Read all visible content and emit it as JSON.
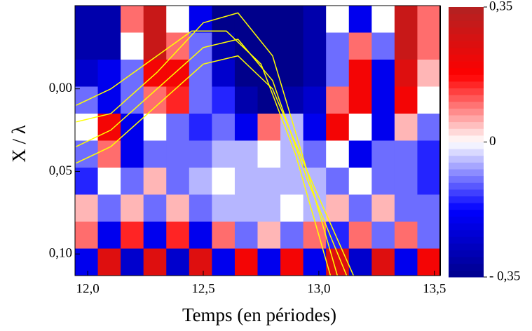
{
  "chart_data": {
    "type": "heatmap",
    "xlabel": "Temps (en périodes)",
    "ylabel": "X / λ",
    "xlim": [
      11.945,
      13.525
    ],
    "ylim": [
      -0.0504,
      0.1131
    ],
    "y_inverted": true,
    "xticks": [
      {
        "value": 12.0,
        "label": "12,0"
      },
      {
        "value": 12.5,
        "label": "12,5"
      },
      {
        "value": 13.0,
        "label": "13,0"
      },
      {
        "value": 13.5,
        "label": "13,5"
      }
    ],
    "yticks": [
      {
        "value": 0.0,
        "label": "0,00"
      },
      {
        "value": 0.05,
        "label": "0,05"
      },
      {
        "value": 0.1,
        "label": "0,10"
      }
    ],
    "clim": [
      -0.35,
      0.35
    ],
    "cticks": [
      {
        "value": 0.35,
        "label": "0,35"
      },
      {
        "value": 0,
        "label": "0"
      },
      {
        "value": -0.35,
        "label": "- 0,35"
      }
    ],
    "colorscale": [
      "#00008b",
      "#0000ff",
      "#ffffff",
      "#ff0000",
      "#b22222"
    ],
    "z": [
      [
        -0.3,
        -0.3,
        0.1,
        0.3,
        0.0,
        -0.2,
        -0.35,
        -0.35,
        -0.35,
        -0.35,
        -0.3,
        0.0,
        -0.2,
        0.0,
        0.3,
        0.1
      ],
      [
        -0.3,
        -0.3,
        0.0,
        0.3,
        0.1,
        -0.1,
        -0.3,
        -0.35,
        -0.35,
        -0.35,
        -0.3,
        -0.1,
        0.1,
        -0.1,
        0.3,
        0.1
      ],
      [
        -0.25,
        -0.2,
        -0.1,
        0.2,
        0.2,
        -0.1,
        -0.25,
        -0.35,
        -0.35,
        -0.35,
        -0.3,
        -0.1,
        0.2,
        -0.2,
        0.25,
        0.05
      ],
      [
        -0.1,
        -0.2,
        -0.1,
        0.1,
        0.15,
        -0.1,
        -0.15,
        -0.3,
        -0.35,
        -0.3,
        -0.25,
        0.1,
        0.2,
        -0.2,
        0.2,
        0.0
      ],
      [
        0.0,
        0.2,
        -0.2,
        0.0,
        -0.1,
        -0.15,
        -0.1,
        -0.2,
        0.1,
        -0.05,
        -0.2,
        0.2,
        0.0,
        -0.2,
        0.05,
        -0.1
      ],
      [
        -0.1,
        0.1,
        -0.2,
        -0.1,
        -0.1,
        -0.1,
        -0.05,
        -0.05,
        0.0,
        -0.05,
        -0.1,
        0.0,
        -0.2,
        -0.1,
        -0.1,
        -0.15
      ],
      [
        -0.15,
        0.0,
        -0.1,
        0.05,
        -0.1,
        -0.05,
        0.0,
        -0.05,
        -0.05,
        -0.05,
        -0.05,
        -0.1,
        0.0,
        -0.1,
        -0.1,
        -0.15
      ],
      [
        0.05,
        -0.1,
        0.05,
        -0.1,
        0.05,
        -0.1,
        -0.05,
        -0.05,
        -0.05,
        0.0,
        -0.05,
        0.05,
        -0.1,
        0.05,
        -0.1,
        -0.1
      ],
      [
        0.1,
        -0.2,
        0.15,
        -0.2,
        0.15,
        -0.2,
        0.1,
        -0.1,
        0.05,
        -0.1,
        0.1,
        -0.15,
        0.1,
        -0.1,
        0.1,
        -0.1
      ],
      [
        -0.2,
        0.25,
        -0.25,
        0.25,
        -0.25,
        0.25,
        -0.2,
        0.2,
        -0.2,
        0.2,
        -0.2,
        0.25,
        -0.25,
        0.25,
        -0.2,
        0.2
      ]
    ],
    "line_color": "#ffff00",
    "trajectories": [
      {
        "x": [
          11.95,
          12.1,
          12.3,
          12.5,
          12.65,
          12.8,
          12.95,
          13.08
        ],
        "y": [
          0.02,
          0.015,
          -0.01,
          -0.04,
          -0.046,
          -0.02,
          0.05,
          0.113
        ]
      },
      {
        "x": [
          11.95,
          12.1,
          12.3,
          12.5,
          12.65,
          12.8,
          12.95,
          13.12
        ],
        "y": [
          0.035,
          0.025,
          0.0,
          -0.025,
          -0.03,
          -0.005,
          0.055,
          0.113
        ]
      },
      {
        "x": [
          11.95,
          12.1,
          12.3,
          12.45,
          12.6,
          12.75,
          12.9,
          13.05
        ],
        "y": [
          0.01,
          0.0,
          -0.02,
          -0.035,
          -0.035,
          -0.015,
          0.04,
          0.113
        ]
      },
      {
        "x": [
          11.95,
          12.1,
          12.3,
          12.5,
          12.65,
          12.8,
          12.95,
          13.15
        ],
        "y": [
          0.045,
          0.035,
          0.01,
          -0.015,
          -0.02,
          0.0,
          0.05,
          0.113
        ]
      }
    ]
  }
}
